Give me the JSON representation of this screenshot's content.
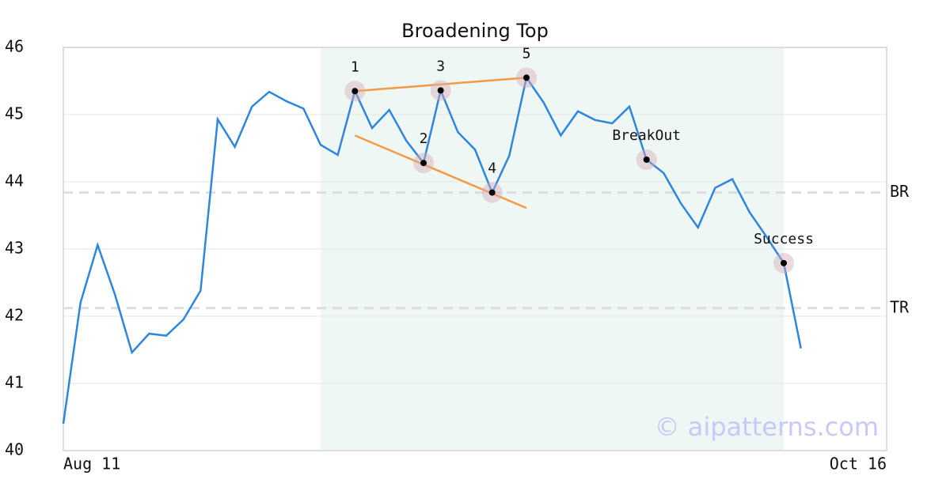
{
  "chart_data": {
    "type": "line",
    "title": "Broadening Top",
    "x": [
      0,
      1,
      2,
      3,
      4,
      5,
      6,
      7,
      8,
      9,
      10,
      11,
      12,
      13,
      14,
      15,
      16,
      17,
      18,
      19,
      20,
      21,
      22,
      23,
      24,
      25,
      26,
      27,
      28,
      29,
      30,
      31,
      32,
      33,
      34,
      35,
      36,
      37,
      38,
      39,
      40,
      41,
      42,
      43
    ],
    "series": [
      {
        "color": "#2e86de",
        "values": [
          40.4,
          42.2,
          43.06,
          42.33,
          41.46,
          41.74,
          41.71,
          41.95,
          42.38,
          44.93,
          44.52,
          45.12,
          45.34,
          45.2,
          45.09,
          44.55,
          44.4,
          45.35,
          44.8,
          45.07,
          44.61,
          44.28,
          45.36,
          44.74,
          44.48,
          43.84,
          44.39,
          45.55,
          45.18,
          44.69,
          45.05,
          44.92,
          44.87,
          45.12,
          44.33,
          44.13,
          43.68,
          43.32,
          43.91,
          44.04,
          43.55,
          43.18,
          42.79,
          41.52
        ]
      }
    ],
    "xlim": [
      0,
      48
    ],
    "xticks": [
      {
        "value": 0,
        "label": "Aug 11"
      },
      {
        "value": 48,
        "label": "Oct 16"
      }
    ],
    "ylim": [
      40,
      46
    ],
    "yticks": [
      40,
      41,
      42,
      43,
      44,
      45,
      46
    ],
    "grid": true,
    "highlight_range": [
      15,
      42
    ],
    "highlight_color": "#eef7f3",
    "levels": [
      {
        "label": "BR",
        "value": 43.84
      },
      {
        "label": "TR",
        "value": 42.12
      }
    ],
    "trendlines": [
      {
        "color": "#f59a42",
        "x": [
          17,
          27
        ],
        "values": [
          45.35,
          45.55
        ]
      },
      {
        "color": "#f59a42",
        "x": [
          17,
          27
        ],
        "values": [
          44.69,
          43.61
        ]
      }
    ],
    "annotations": [
      {
        "label": "1",
        "x": 17,
        "value": 45.35
      },
      {
        "label": "2",
        "x": 21,
        "value": 44.28
      },
      {
        "label": "3",
        "x": 22,
        "value": 45.36
      },
      {
        "label": "4",
        "x": 25,
        "value": 43.84
      },
      {
        "label": "5",
        "x": 27,
        "value": 45.55
      },
      {
        "label": "BreakOut",
        "x": 34,
        "value": 44.33
      },
      {
        "label": "Success",
        "x": 42,
        "value": 42.79
      }
    ],
    "watermark": "© aipatterns.com"
  }
}
